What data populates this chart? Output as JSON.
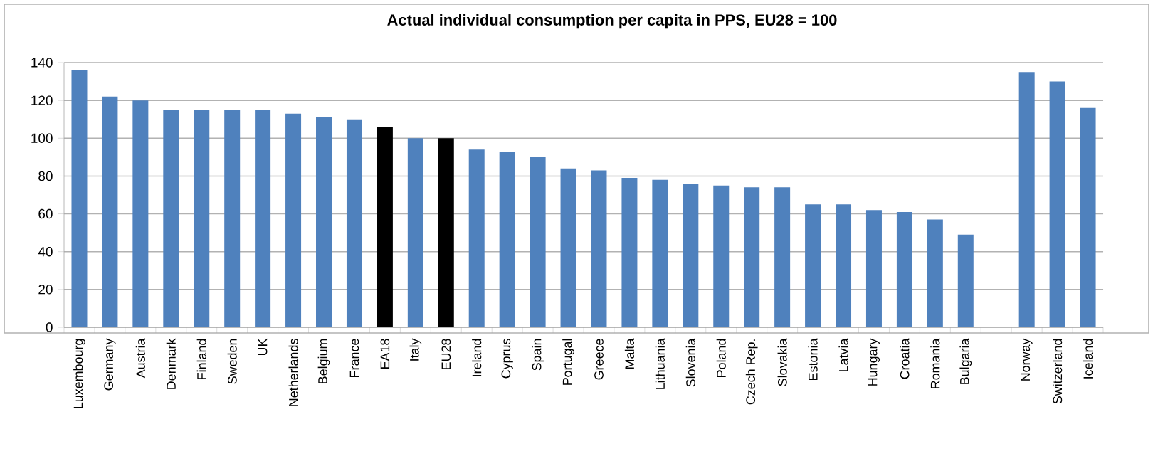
{
  "chart_data": {
    "type": "bar",
    "title": "Actual individual consumption per capita in PPS, EU28 = 100",
    "categories": [
      "Luxembourg",
      "Germany",
      "Austria",
      "Denmark",
      "Finland",
      "Sweden",
      "UK",
      "Netherlands",
      "Belgium",
      "France",
      "EA18",
      "Italy",
      "EU28",
      "Ireland",
      "Cyprus",
      "Spain",
      "Portugal",
      "Greece",
      "Malta",
      "Lithuania",
      "Slovenia",
      "Poland",
      "Czech Rep.",
      "Slovakia",
      "Estonia",
      "Latvia",
      "Hungary",
      "Croatia",
      "Romania",
      "Bulgaria",
      null,
      "Norway",
      "Switzerland",
      "Iceland"
    ],
    "values": [
      136,
      122,
      120,
      115,
      115,
      115,
      115,
      113,
      111,
      110,
      106,
      100,
      100,
      94,
      93,
      90,
      84,
      83,
      79,
      78,
      76,
      75,
      74,
      74,
      65,
      65,
      62,
      61,
      57,
      49,
      null,
      135,
      130,
      116
    ],
    "colors": [
      "#4f81bd",
      "#4f81bd",
      "#4f81bd",
      "#4f81bd",
      "#4f81bd",
      "#4f81bd",
      "#4f81bd",
      "#4f81bd",
      "#4f81bd",
      "#4f81bd",
      "#000000",
      "#4f81bd",
      "#000000",
      "#4f81bd",
      "#4f81bd",
      "#4f81bd",
      "#4f81bd",
      "#4f81bd",
      "#4f81bd",
      "#4f81bd",
      "#4f81bd",
      "#4f81bd",
      "#4f81bd",
      "#4f81bd",
      "#4f81bd",
      "#4f81bd",
      "#4f81bd",
      "#4f81bd",
      "#4f81bd",
      "#4f81bd",
      "#4f81bd",
      "#4f81bd",
      "#4f81bd",
      "#4f81bd"
    ],
    "ylim": [
      0,
      140
    ],
    "yticks": [
      0,
      20,
      40,
      60,
      80,
      100,
      120,
      140
    ],
    "grid": "y"
  }
}
